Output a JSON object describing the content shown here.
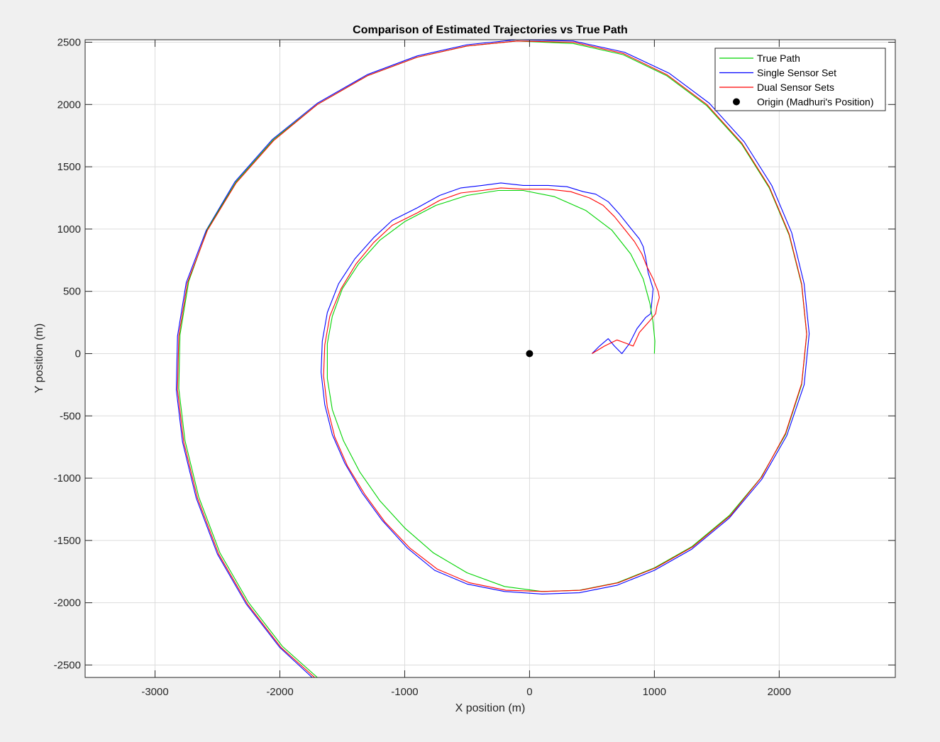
{
  "chart_data": {
    "type": "line",
    "title": "Comparison of Estimated Trajectories vs True Path",
    "xlabel": "X position (m)",
    "ylabel": "Y position (m)",
    "xlim": [
      -3560,
      2930
    ],
    "ylim": [
      -2600,
      2520
    ],
    "xticks": [
      -3000,
      -2000,
      -1000,
      0,
      1000,
      2000
    ],
    "yticks": [
      -2500,
      -2000,
      -1500,
      -1000,
      -500,
      0,
      500,
      1000,
      1500,
      2000,
      2500
    ],
    "xtick_labels": [
      "-3000",
      "-2000",
      "-1000",
      "0",
      "1000",
      "2000"
    ],
    "ytick_labels": [
      "-2500",
      "-2000",
      "-1500",
      "-1000",
      "-500",
      "0",
      "500",
      "1000",
      "1500",
      "2000",
      "2500"
    ],
    "grid": true,
    "legend_position": "top-right",
    "series": [
      {
        "name": "True Path",
        "color": "#00d400",
        "points": [
          [
            1000,
            0
          ],
          [
            1004,
            100
          ],
          [
            990,
            250
          ],
          [
            965,
            400
          ],
          [
            910,
            600
          ],
          [
            810,
            800
          ],
          [
            660,
            990
          ],
          [
            450,
            1150
          ],
          [
            200,
            1260
          ],
          [
            -50,
            1310
          ],
          [
            -250,
            1310
          ],
          [
            -500,
            1270
          ],
          [
            -750,
            1190
          ],
          [
            -1000,
            1060
          ],
          [
            -1200,
            910
          ],
          [
            -1370,
            720
          ],
          [
            -1500,
            520
          ],
          [
            -1580,
            300
          ],
          [
            -1620,
            80
          ],
          [
            -1620,
            -200
          ],
          [
            -1580,
            -450
          ],
          [
            -1490,
            -700
          ],
          [
            -1360,
            -950
          ],
          [
            -1200,
            -1180
          ],
          [
            -1000,
            -1400
          ],
          [
            -770,
            -1600
          ],
          [
            -500,
            -1760
          ],
          [
            -200,
            -1870
          ],
          [
            100,
            -1910
          ],
          [
            400,
            -1900
          ],
          [
            700,
            -1840
          ],
          [
            1000,
            -1720
          ],
          [
            1300,
            -1550
          ],
          [
            1600,
            -1300
          ],
          [
            1850,
            -1000
          ],
          [
            2050,
            -650
          ],
          [
            2180,
            -250
          ],
          [
            2220,
            150
          ],
          [
            2180,
            550
          ],
          [
            2080,
            950
          ],
          [
            1920,
            1330
          ],
          [
            1700,
            1680
          ],
          [
            1420,
            1990
          ],
          [
            1100,
            2230
          ],
          [
            750,
            2400
          ],
          [
            350,
            2490
          ],
          [
            -100,
            2510
          ],
          [
            -500,
            2470
          ],
          [
            -900,
            2380
          ],
          [
            -1300,
            2230
          ],
          [
            -1700,
            2000
          ],
          [
            -2050,
            1720
          ],
          [
            -2350,
            1380
          ],
          [
            -2580,
            1000
          ],
          [
            -2730,
            580
          ],
          [
            -2800,
            150
          ],
          [
            -2810,
            -280
          ],
          [
            -2760,
            -700
          ],
          [
            -2650,
            -1150
          ],
          [
            -2480,
            -1600
          ],
          [
            -2250,
            -2000
          ],
          [
            -1980,
            -2350
          ],
          [
            -1700,
            -2600
          ]
        ]
      },
      {
        "name": "Single Sensor Set",
        "color": "#0000ff",
        "points": [
          [
            500,
            0
          ],
          [
            560,
            60
          ],
          [
            630,
            120
          ],
          [
            680,
            60
          ],
          [
            740,
            0
          ],
          [
            800,
            80
          ],
          [
            860,
            200
          ],
          [
            930,
            290
          ],
          [
            970,
            320
          ],
          [
            980,
            420
          ],
          [
            990,
            520
          ],
          [
            950,
            650
          ],
          [
            930,
            770
          ],
          [
            910,
            860
          ],
          [
            880,
            920
          ],
          [
            800,
            1020
          ],
          [
            720,
            1120
          ],
          [
            630,
            1220
          ],
          [
            530,
            1280
          ],
          [
            430,
            1300
          ],
          [
            300,
            1340
          ],
          [
            150,
            1350
          ],
          [
            -50,
            1350
          ],
          [
            -230,
            1370
          ],
          [
            -380,
            1350
          ],
          [
            -550,
            1330
          ],
          [
            -720,
            1270
          ],
          [
            -900,
            1170
          ],
          [
            -1100,
            1070
          ],
          [
            -1250,
            930
          ],
          [
            -1400,
            760
          ],
          [
            -1530,
            560
          ],
          [
            -1620,
            330
          ],
          [
            -1660,
            100
          ],
          [
            -1670,
            -150
          ],
          [
            -1640,
            -410
          ],
          [
            -1580,
            -650
          ],
          [
            -1480,
            -880
          ],
          [
            -1340,
            -1120
          ],
          [
            -1180,
            -1340
          ],
          [
            -980,
            -1560
          ],
          [
            -760,
            -1740
          ],
          [
            -500,
            -1850
          ],
          [
            -200,
            -1910
          ],
          [
            100,
            -1930
          ],
          [
            400,
            -1920
          ],
          [
            700,
            -1860
          ],
          [
            1000,
            -1740
          ],
          [
            1300,
            -1570
          ],
          [
            1600,
            -1320
          ],
          [
            1860,
            -1010
          ],
          [
            2060,
            -660
          ],
          [
            2200,
            -250
          ],
          [
            2240,
            160
          ],
          [
            2200,
            560
          ],
          [
            2100,
            970
          ],
          [
            1940,
            1350
          ],
          [
            1720,
            1700
          ],
          [
            1440,
            2010
          ],
          [
            1120,
            2250
          ],
          [
            760,
            2420
          ],
          [
            350,
            2510
          ],
          [
            -100,
            2520
          ],
          [
            -500,
            2480
          ],
          [
            -900,
            2390
          ],
          [
            -1300,
            2240
          ],
          [
            -1700,
            2010
          ],
          [
            -2060,
            1720
          ],
          [
            -2360,
            1380
          ],
          [
            -2590,
            990
          ],
          [
            -2750,
            570
          ],
          [
            -2820,
            140
          ],
          [
            -2830,
            -290
          ],
          [
            -2780,
            -710
          ],
          [
            -2670,
            -1160
          ],
          [
            -2500,
            -1610
          ],
          [
            -2270,
            -2010
          ],
          [
            -2000,
            -2360
          ],
          [
            -1720,
            -2620
          ]
        ]
      },
      {
        "name": "Dual Sensor Sets",
        "color": "#ff0000",
        "points": [
          [
            500,
            0
          ],
          [
            600,
            60
          ],
          [
            700,
            110
          ],
          [
            780,
            80
          ],
          [
            830,
            60
          ],
          [
            880,
            170
          ],
          [
            960,
            260
          ],
          [
            1010,
            320
          ],
          [
            1020,
            380
          ],
          [
            1040,
            450
          ],
          [
            1030,
            500
          ],
          [
            990,
            600
          ],
          [
            940,
            700
          ],
          [
            900,
            800
          ],
          [
            840,
            900
          ],
          [
            760,
            1000
          ],
          [
            680,
            1100
          ],
          [
            590,
            1190
          ],
          [
            480,
            1250
          ],
          [
            330,
            1300
          ],
          [
            150,
            1320
          ],
          [
            -50,
            1320
          ],
          [
            -230,
            1330
          ],
          [
            -380,
            1310
          ],
          [
            -550,
            1290
          ],
          [
            -720,
            1230
          ],
          [
            -900,
            1130
          ],
          [
            -1100,
            1030
          ],
          [
            -1250,
            890
          ],
          [
            -1390,
            720
          ],
          [
            -1510,
            520
          ],
          [
            -1600,
            300
          ],
          [
            -1640,
            70
          ],
          [
            -1650,
            -180
          ],
          [
            -1620,
            -430
          ],
          [
            -1560,
            -670
          ],
          [
            -1460,
            -900
          ],
          [
            -1320,
            -1130
          ],
          [
            -1160,
            -1350
          ],
          [
            -960,
            -1560
          ],
          [
            -740,
            -1730
          ],
          [
            -480,
            -1840
          ],
          [
            -190,
            -1900
          ],
          [
            110,
            -1910
          ],
          [
            410,
            -1900
          ],
          [
            710,
            -1840
          ],
          [
            1010,
            -1720
          ],
          [
            1310,
            -1550
          ],
          [
            1610,
            -1300
          ],
          [
            1860,
            -990
          ],
          [
            2050,
            -640
          ],
          [
            2180,
            -240
          ],
          [
            2220,
            160
          ],
          [
            2180,
            560
          ],
          [
            2080,
            960
          ],
          [
            1920,
            1340
          ],
          [
            1700,
            1690
          ],
          [
            1420,
            2000
          ],
          [
            1100,
            2240
          ],
          [
            750,
            2410
          ],
          [
            350,
            2500
          ],
          [
            -100,
            2510
          ],
          [
            -500,
            2470
          ],
          [
            -900,
            2380
          ],
          [
            -1300,
            2230
          ],
          [
            -1700,
            2000
          ],
          [
            -2050,
            1710
          ],
          [
            -2350,
            1370
          ],
          [
            -2580,
            990
          ],
          [
            -2740,
            570
          ],
          [
            -2810,
            140
          ],
          [
            -2820,
            -290
          ],
          [
            -2770,
            -710
          ],
          [
            -2660,
            -1160
          ],
          [
            -2490,
            -1610
          ],
          [
            -2260,
            -2010
          ],
          [
            -1990,
            -2360
          ],
          [
            -1710,
            -2610
          ]
        ]
      },
      {
        "name": "Origin (Madhuri's Position)",
        "color": "#000000",
        "marker": "filled-circle",
        "points": [
          [
            0,
            0
          ]
        ]
      }
    ]
  }
}
